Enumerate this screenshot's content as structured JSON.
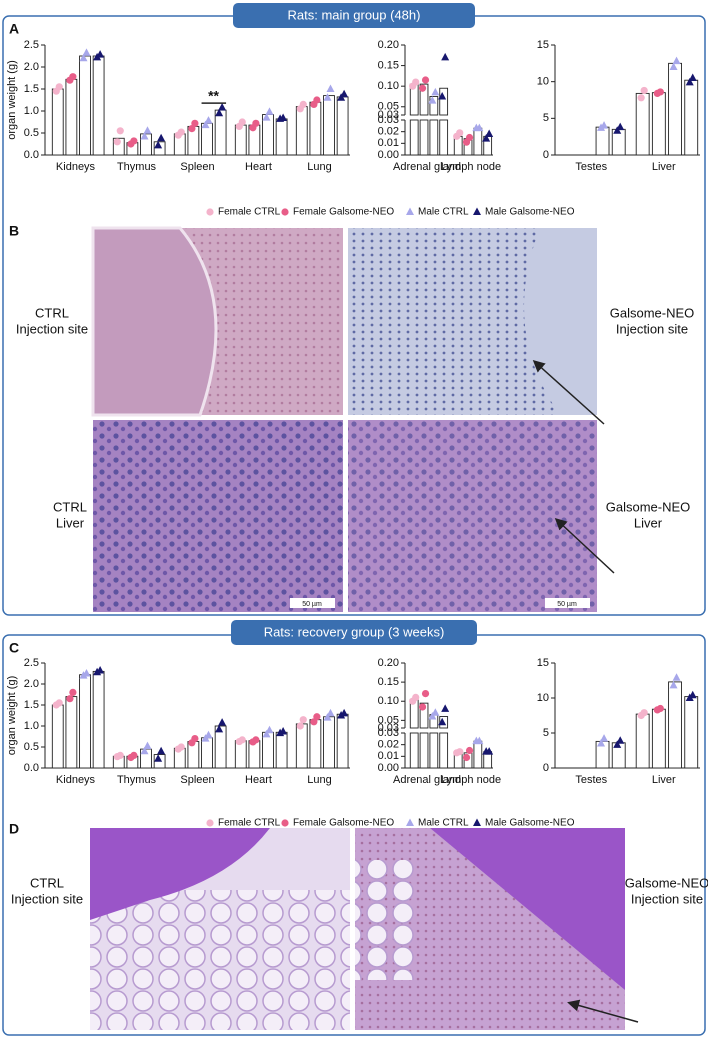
{
  "sections": [
    {
      "title": "Rats: main group (48h)"
    },
    {
      "title": "Rats: recovery group (3 weeks)"
    }
  ],
  "panel_labels": [
    "A",
    "B",
    "C",
    "D"
  ],
  "chart_data": [
    {
      "type": "bar",
      "ylabel": "organ weight (g)",
      "series": [
        {
          "name": "Female CTRL",
          "color": "#f4b3cb",
          "marker": "circle"
        },
        {
          "name": "Female Galsome-NEO",
          "color": "#e85d88",
          "marker": "circle"
        },
        {
          "name": "Male CTRL",
          "color": "#a7a7ea",
          "marker": "triangle"
        },
        {
          "name": "Male Galsome-NEO",
          "color": "#17176e",
          "marker": "triangle"
        }
      ],
      "subplots": [
        {
          "categories": [
            "Kidneys",
            "Thymus",
            "Spleen",
            "Heart",
            "Lung"
          ],
          "ylim": [
            0,
            2.5
          ],
          "yticks": [
            {
              "value": 0,
              "label": "0.0"
            },
            {
              "value": 0.5,
              "label": "0.5"
            },
            {
              "value": 1,
              "label": "1.0"
            },
            {
              "value": 1.5,
              "label": "1.5"
            },
            {
              "value": 2,
              "label": "2.0"
            },
            {
              "value": 2.5,
              "label": "2.5"
            }
          ],
          "annotation": "**",
          "values": [
            [
              1.5,
              0.38,
              0.48,
              0.68,
              1.1
            ],
            [
              1.72,
              0.28,
              0.65,
              0.68,
              1.2
            ],
            [
              2.25,
              0.48,
              0.72,
              0.92,
              1.35
            ],
            [
              2.25,
              0.3,
              1.02,
              0.82,
              1.32
            ]
          ],
          "points": [
            [
              [
                1.45,
                1.55
              ],
              [
                0.3,
                0.55
              ],
              [
                0.45,
                0.52
              ],
              [
                0.65,
                0.75
              ],
              [
                1.05,
                1.15
              ]
            ],
            [
              [
                1.7,
                1.78
              ],
              [
                0.25,
                0.32
              ],
              [
                0.6,
                0.72
              ],
              [
                0.62,
                0.72
              ],
              [
                1.15,
                1.25
              ]
            ],
            [
              [
                2.2,
                2.32
              ],
              [
                0.42,
                0.55
              ],
              [
                0.68,
                0.78
              ],
              [
                0.85,
                0.98
              ],
              [
                1.3,
                1.5
              ]
            ],
            [
              [
                2.22,
                2.28
              ],
              [
                0.22,
                0.38
              ],
              [
                0.95,
                1.08
              ],
              [
                0.82,
                0.84
              ],
              [
                1.3,
                1.38
              ]
            ]
          ]
        },
        {
          "categories": [
            "Adrenal gland",
            "Lymph node"
          ],
          "ylim": [
            0,
            0.03
          ],
          "ylim_upper": [
            0.03,
            0.2
          ],
          "yticks": [
            {
              "value": 0,
              "label": "0.00"
            },
            0.01,
            0.02,
            0.03
          ],
          "yticks_upper": [
            0.03,
            0.05,
            {
              "value": 0.1,
              "label": "0.10"
            },
            0.15,
            {
              "value": 0.2,
              "label": "0.20"
            }
          ],
          "values": [
            [
              0.105,
              0.016
            ],
            [
              0.105,
              0.014
            ],
            [
              0.075,
              0.023
            ],
            [
              0.095,
              0.016
            ]
          ],
          "points": [
            [
              [
                0.1,
                0.11
              ],
              [
                0.016,
                0.019
              ]
            ],
            [
              [
                0.095,
                0.115
              ],
              [
                0.011,
                0.015
              ]
            ],
            [
              [
                0.065,
                0.085
              ],
              [
                0.023,
                0.023
              ]
            ],
            [
              [
                0.075,
                0.17
              ],
              [
                0.014,
                0.018
              ]
            ]
          ]
        },
        {
          "categories": [
            "Testes",
            "Liver"
          ],
          "ylim": [
            0,
            15
          ],
          "yticks": [
            0,
            5,
            10,
            15
          ],
          "values": [
            [
              null,
              8.4
            ],
            [
              null,
              8.5
            ],
            [
              3.8,
              12.5
            ],
            [
              3.5,
              10.2
            ]
          ],
          "points": [
            [
              [],
              [
                7.8,
                8.8
              ]
            ],
            [
              [],
              [
                8.4,
                8.6
              ]
            ],
            [
              [
                3.7,
                4.0
              ],
              [
                12,
                12.8
              ]
            ],
            [
              [
                3.3,
                3.8
              ],
              [
                9.9,
                10.5
              ]
            ]
          ]
        }
      ]
    },
    {
      "type": "bar",
      "ylabel": "organ weight (g)",
      "series": [
        {
          "name": "Female CTRL",
          "color": "#f4b3cb",
          "marker": "circle"
        },
        {
          "name": "Female Galsome-NEO",
          "color": "#e85d88",
          "marker": "circle"
        },
        {
          "name": "Male CTRL",
          "color": "#a7a7ea",
          "marker": "triangle"
        },
        {
          "name": "Male Galsome-NEO",
          "color": "#17176e",
          "marker": "triangle"
        }
      ],
      "subplots": [
        {
          "categories": [
            "Kidneys",
            "Thymus",
            "Spleen",
            "Heart",
            "Lung"
          ],
          "ylim": [
            0,
            2.5
          ],
          "yticks": [
            {
              "value": 0,
              "label": "0.0"
            },
            {
              "value": 0.5,
              "label": "0.5"
            },
            {
              "value": 1,
              "label": "1.0"
            },
            {
              "value": 1.5,
              "label": "1.5"
            },
            {
              "value": 2,
              "label": "2.0"
            },
            {
              "value": 2.5,
              "label": "2.5"
            }
          ],
          "values": [
            [
              1.5,
              0.28,
              0.47,
              0.65,
              1.05
            ],
            [
              1.7,
              0.28,
              0.63,
              0.65,
              1.15
            ],
            [
              2.22,
              0.45,
              0.72,
              0.85,
              1.22
            ],
            [
              2.3,
              0.32,
              1.0,
              0.85,
              1.28
            ]
          ],
          "points": [
            [
              [
                1.5,
                1.55
              ],
              [
                0.27,
                0.3
              ],
              [
                0.45,
                0.5
              ],
              [
                0.63,
                0.67
              ],
              [
                1.0,
                1.15
              ]
            ],
            [
              [
                1.65,
                1.8
              ],
              [
                0.25,
                0.3
              ],
              [
                0.6,
                0.7
              ],
              [
                0.62,
                0.67
              ],
              [
                1.1,
                1.22
              ]
            ],
            [
              [
                2.2,
                2.25
              ],
              [
                0.4,
                0.52
              ],
              [
                0.7,
                0.78
              ],
              [
                0.8,
                0.9
              ],
              [
                1.2,
                1.3
              ]
            ],
            [
              [
                2.28,
                2.32
              ],
              [
                0.22,
                0.4
              ],
              [
                0.92,
                1.08
              ],
              [
                0.83,
                0.87
              ],
              [
                1.25,
                1.3
              ]
            ]
          ]
        },
        {
          "categories": [
            "Adrenal gland",
            "Lymph node"
          ],
          "ylim": [
            0,
            0.03
          ],
          "ylim_upper": [
            0.03,
            0.2
          ],
          "yticks": [
            {
              "value": 0,
              "label": "0.00"
            },
            0.01,
            0.02,
            0.03
          ],
          "yticks_upper": [
            0.03,
            0.05,
            {
              "value": 0.1,
              "label": "0.10"
            },
            0.15,
            {
              "value": 0.2,
              "label": "0.20"
            }
          ],
          "values": [
            [
              0.105,
              0.014
            ],
            [
              0.095,
              0.013
            ],
            [
              0.065,
              0.023
            ],
            [
              0.06,
              0.014
            ]
          ],
          "points": [
            [
              [
                0.1,
                0.11
              ],
              [
                0.013,
                0.014
              ]
            ],
            [
              [
                0.085,
                0.12
              ],
              [
                0.009,
                0.015
              ]
            ],
            [
              [
                0.06,
                0.07
              ],
              [
                0.023,
                0.023
              ]
            ],
            [
              [
                0.045,
                0.08
              ],
              [
                0.014,
                0.014
              ]
            ]
          ]
        },
        {
          "categories": [
            "Testes",
            "Liver"
          ],
          "ylim": [
            0,
            15
          ],
          "yticks": [
            0,
            5,
            10,
            15
          ],
          "values": [
            [
              null,
              7.7
            ],
            [
              null,
              8.4
            ],
            [
              3.8,
              12.3
            ],
            [
              3.6,
              10.2
            ]
          ],
          "points": [
            [
              [],
              [
                7.5,
                7.9
              ]
            ],
            [
              [],
              [
                8.3,
                8.5
              ]
            ],
            [
              [
                3.5,
                4.2
              ],
              [
                11.8,
                12.9
              ]
            ],
            [
              [
                3.3,
                3.9
              ],
              [
                10,
                10.4
              ]
            ]
          ]
        }
      ]
    }
  ],
  "image_labels": {
    "b": [
      [
        "CTRL",
        "Injection site"
      ],
      [
        "Galsome-NEO",
        "Injection site"
      ],
      [
        "CTRL",
        "Liver"
      ],
      [
        "Galsome-NEO",
        "Liver"
      ]
    ],
    "d": [
      [
        "CTRL",
        "Injection site"
      ],
      [
        "Galsome-NEO",
        "Injection site"
      ]
    ]
  },
  "scale_bar": "50 µm"
}
